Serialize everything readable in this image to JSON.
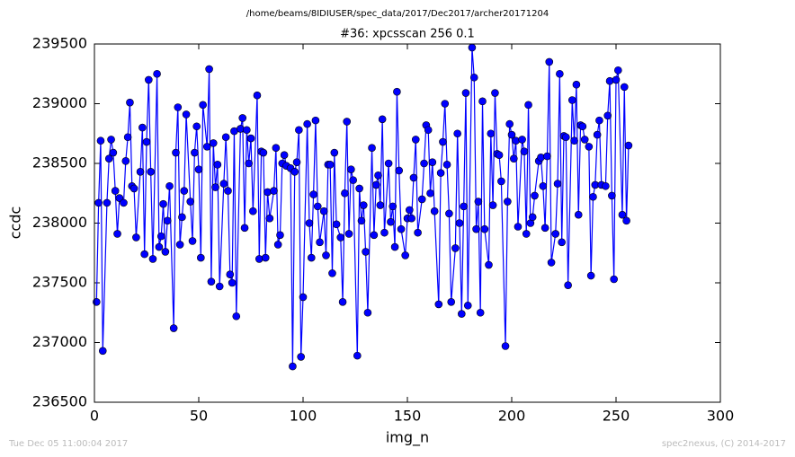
{
  "chart_data": {
    "type": "line",
    "suptitle": "/home/beams/8IDIUSER/spec_data/2017/Dec2017/archer20171204",
    "title": "#36: xpcsscan 256 0.1",
    "xlabel": "img_n",
    "ylabel": "ccdc",
    "footer_left": "Tue Dec 05 11:00:04 2017",
    "footer_right": "spec2nexus, (C) 2014-2017",
    "xlim": [
      0,
      300
    ],
    "xticks": [
      0,
      50,
      100,
      150,
      200,
      250,
      300
    ],
    "ylim": [
      236500,
      239500
    ],
    "yticks": [
      236500,
      237000,
      237500,
      238000,
      238500,
      239000,
      239500
    ],
    "x": [
      1,
      2,
      3,
      4,
      6,
      7,
      8,
      9,
      10,
      11,
      12,
      14,
      15,
      16,
      17,
      18,
      19,
      20,
      22,
      23,
      24,
      25,
      26,
      27,
      28,
      30,
      31,
      32,
      33,
      34,
      35,
      36,
      38,
      39,
      40,
      41,
      42,
      43,
      44,
      46,
      47,
      48,
      49,
      50,
      51,
      52,
      54,
      55,
      56,
      57,
      58,
      59,
      60,
      62,
      63,
      64,
      65,
      66,
      67,
      68,
      70,
      71,
      72,
      73,
      74,
      75,
      76,
      78,
      79,
      80,
      81,
      82,
      83,
      84,
      86,
      87,
      88,
      89,
      90,
      91,
      92,
      94,
      95,
      96,
      97,
      98,
      99,
      100,
      102,
      103,
      104,
      105,
      106,
      107,
      108,
      110,
      111,
      112,
      113,
      114,
      115,
      116,
      118,
      119,
      120,
      121,
      122,
      123,
      124,
      126,
      127,
      128,
      129,
      130,
      131,
      133,
      134,
      135,
      136,
      137,
      138,
      139,
      141,
      142,
      143,
      144,
      145,
      146,
      147,
      149,
      150,
      151,
      152,
      153,
      154,
      155,
      157,
      158,
      159,
      160,
      161,
      162,
      163,
      165,
      166,
      167,
      168,
      169,
      170,
      171,
      173,
      174,
      175,
      176,
      177,
      178,
      179,
      181,
      182,
      183,
      184,
      185,
      186,
      187,
      189,
      190,
      191,
      192,
      193,
      194,
      195,
      197,
      198,
      199,
      200,
      201,
      202,
      203,
      205,
      206,
      207,
      208,
      209,
      210,
      211,
      213,
      214,
      215,
      216,
      217,
      218,
      219,
      221,
      222,
      223,
      224,
      225,
      226,
      227,
      229,
      230,
      231,
      232,
      233,
      234,
      235,
      237,
      238,
      239,
      240,
      241,
      242,
      243,
      245,
      246,
      247,
      248,
      249,
      250,
      251,
      253,
      254,
      255,
      256
    ],
    "series": [
      {
        "name": "ccdc",
        "color": "#0000ff",
        "values": [
          237340,
          238170,
          238690,
          236930,
          238170,
          238540,
          238700,
          238590,
          238270,
          237910,
          238210,
          238170,
          238520,
          238720,
          239010,
          238310,
          238290,
          237880,
          238430,
          238800,
          237740,
          238680,
          239200,
          238430,
          237700,
          239250,
          237800,
          237890,
          238160,
          237760,
          238020,
          238310,
          237120,
          238590,
          238970,
          237820,
          238050,
          238270,
          238910,
          238180,
          237850,
          238590,
          238810,
          238450,
          237710,
          238990,
          238640,
          239290,
          237510,
          238670,
          238300,
          238490,
          237470,
          238330,
          238720,
          238270,
          237570,
          237500,
          238770,
          237220,
          238790,
          238880,
          237960,
          238780,
          238500,
          238710,
          238100,
          239070,
          237700,
          238600,
          238590,
          237710,
          238260,
          238040,
          238270,
          238630,
          237820,
          237900,
          238500,
          238570,
          238480,
          238460,
          236800,
          238430,
          238510,
          238780,
          236880,
          237380,
          238830,
          238000,
          237710,
          238240,
          238860,
          238140,
          237840,
          238100,
          237730,
          238490,
          238490,
          237580,
          238590,
          237990,
          237880,
          237340,
          238250,
          238850,
          237910,
          238450,
          238360,
          236890,
          238290,
          238020,
          238150,
          237760,
          237250,
          238630,
          237900,
          238320,
          238400,
          238150,
          238870,
          237920,
          238500,
          238010,
          238140,
          237800,
          239100,
          238440,
          237950,
          237730,
          238040,
          238110,
          238040,
          238380,
          238700,
          237920,
          238200,
          238500,
          238820,
          238780,
          238250,
          238510,
          238100,
          237320,
          238420,
          238680,
          239000,
          238490,
          238080,
          237340,
          237790,
          238750,
          238000,
          237240,
          238140,
          239090,
          237310,
          239470,
          239220,
          237950,
          238180,
          237250,
          239020,
          237950,
          237650,
          238750,
          238150,
          239090,
          238580,
          238570,
          238350,
          236970,
          238180,
          238830,
          238740,
          238540,
          238690,
          237970,
          238700,
          238600,
          237910,
          238990,
          238000,
          238050,
          238230,
          238520,
          238550,
          238310,
          237960,
          238560,
          239350,
          237670,
          237910,
          238330,
          239250,
          237840,
          238730,
          238720,
          237480,
          239030,
          238690,
          239160,
          238070,
          238820,
          238810,
          238700,
          238640,
          237560,
          238220,
          238320,
          238740,
          238860,
          238320,
          238310,
          238900,
          239190,
          238230,
          237530,
          239200,
          239280,
          238070,
          239140,
          238020,
          238650
        ]
      }
    ]
  }
}
